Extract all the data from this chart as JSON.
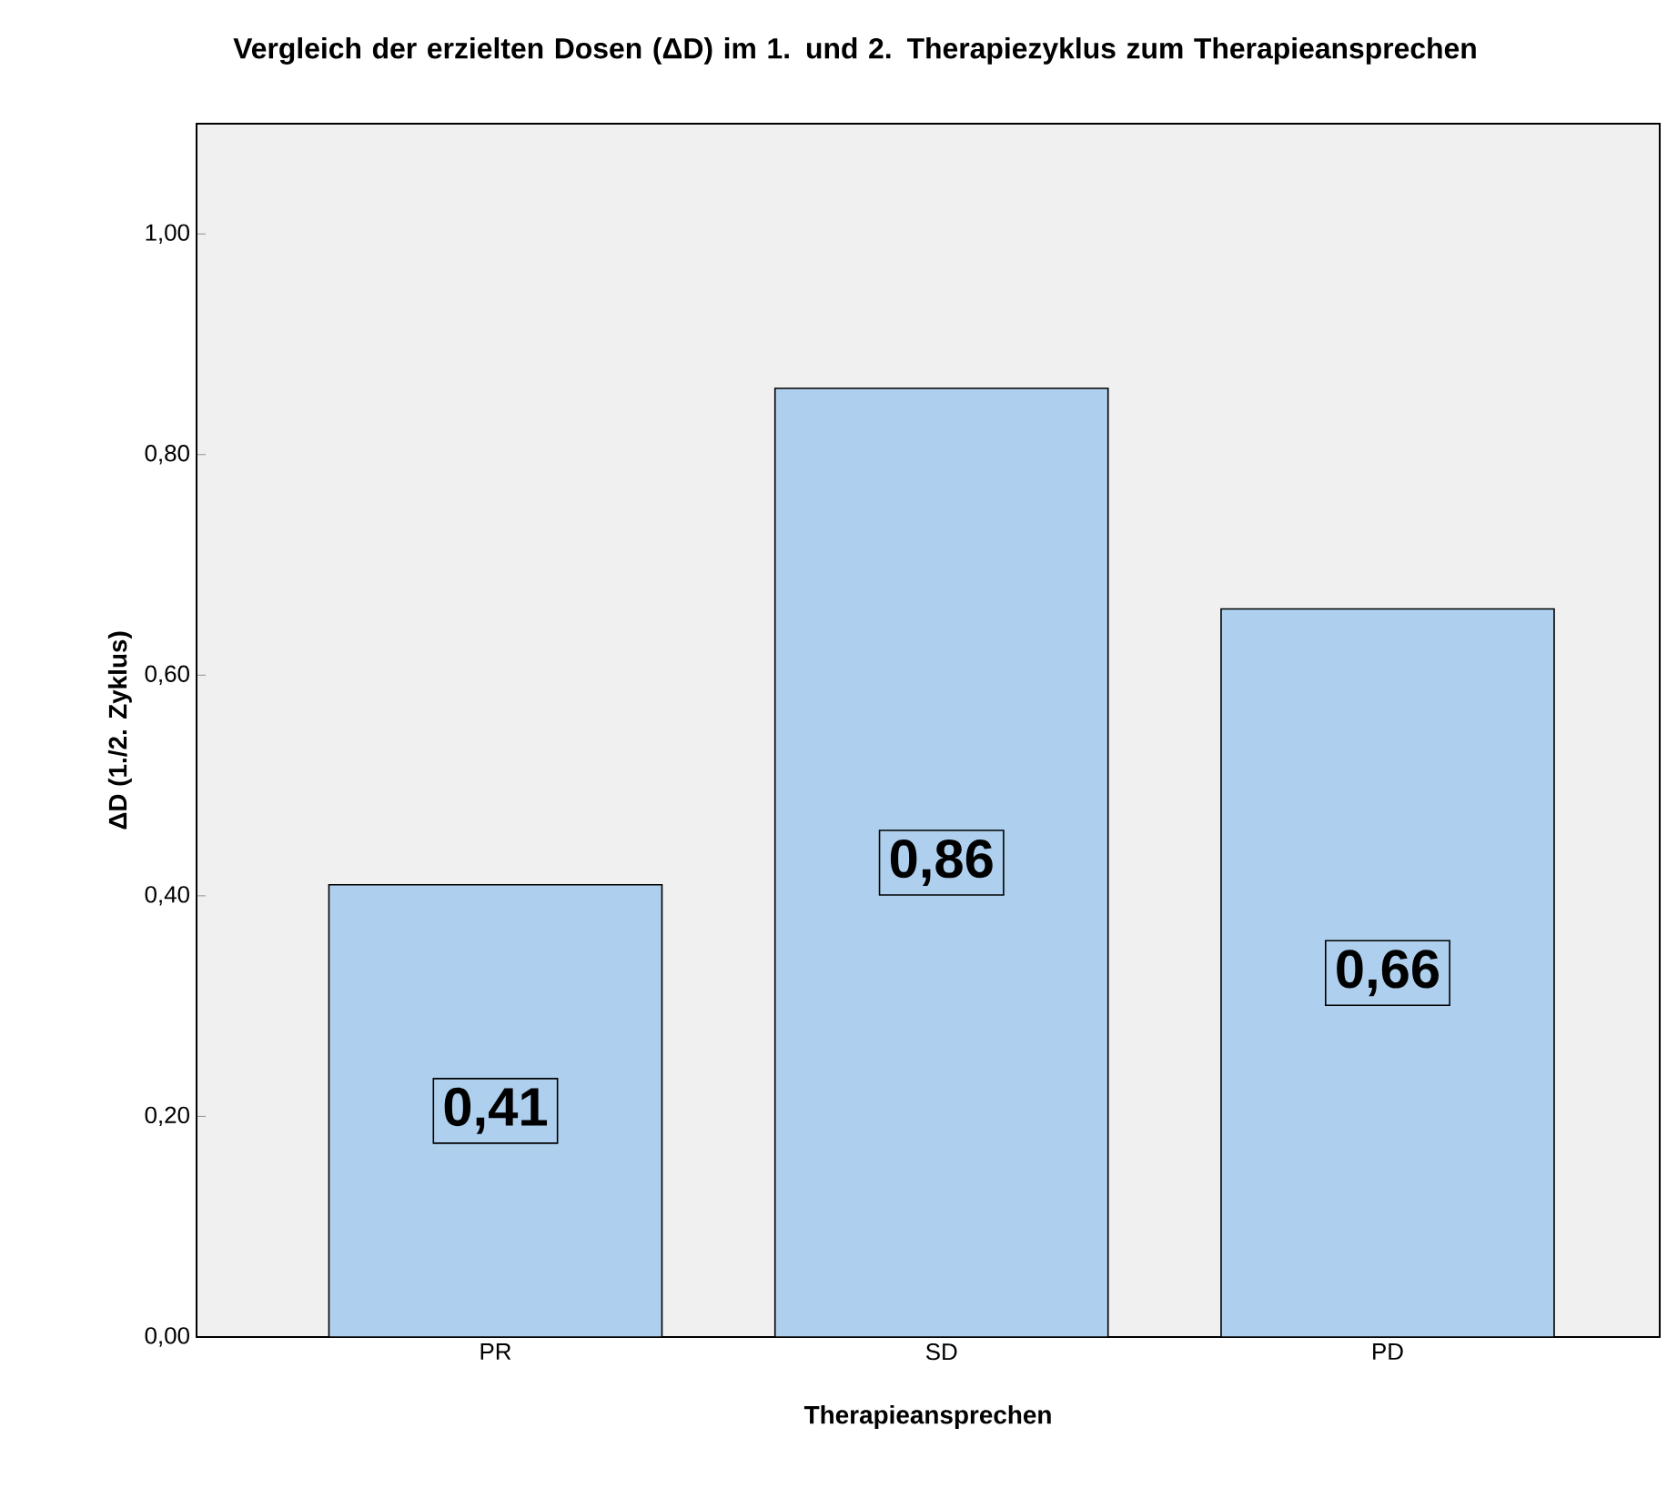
{
  "chart_data": {
    "type": "bar",
    "title": "Vergleich der erzielten Dosen (ΔD) im 1. und 2. Therapiezyklus zum Therapieansprechen",
    "xlabel": "Therapieansprechen",
    "ylabel": "ΔD (1./2. Zyklus)",
    "categories": [
      "PR",
      "SD",
      "PD"
    ],
    "values": [
      0.41,
      0.86,
      0.66
    ],
    "value_labels": [
      "0,41",
      "0,86",
      "0,66"
    ],
    "color": "#aed0ee",
    "ylim": [
      0,
      1.1
    ],
    "yticks": [
      {
        "value": 0,
        "label": "0,00"
      },
      {
        "value": 0.2,
        "label": "0,20"
      },
      {
        "value": 0.4,
        "label": "0,40"
      },
      {
        "value": 0.6,
        "label": "0,60"
      },
      {
        "value": 0.8,
        "label": "0,80"
      },
      {
        "value": 1.0,
        "label": "1,00"
      }
    ],
    "grid": false
  }
}
